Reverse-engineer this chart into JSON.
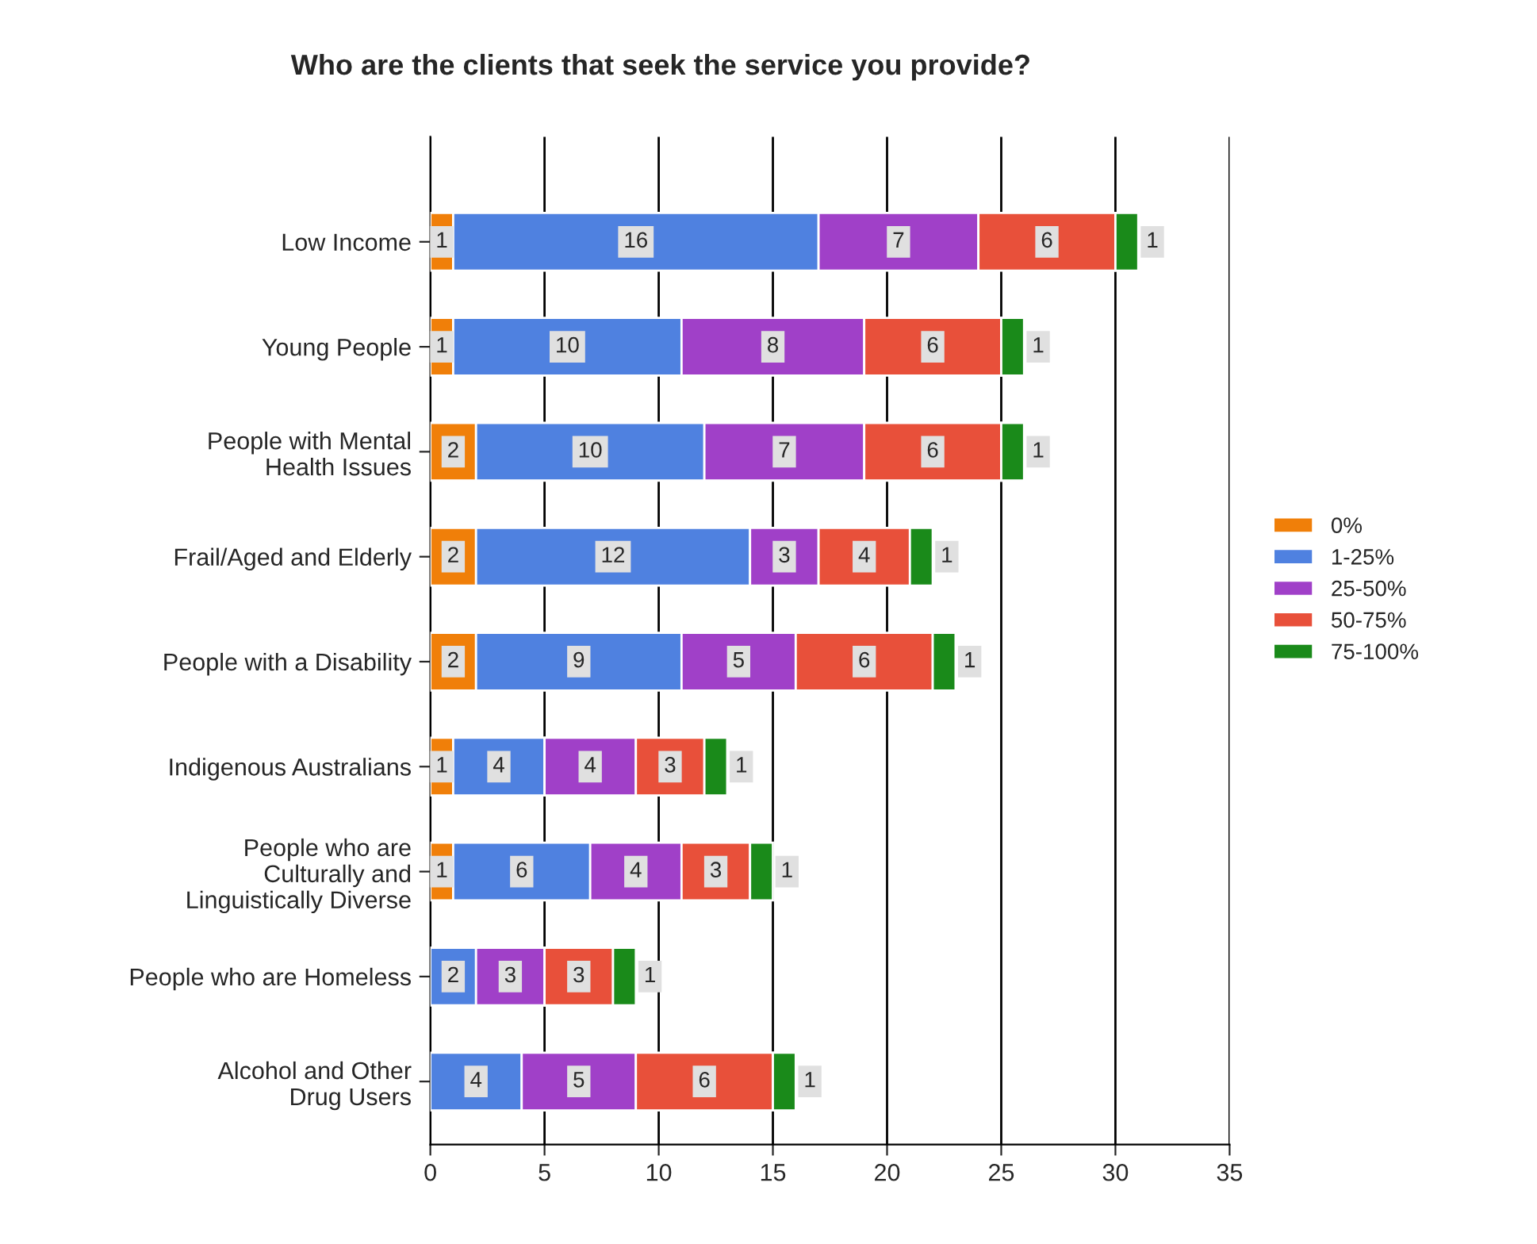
{
  "chart_data": {
    "type": "bar",
    "orientation": "horizontal",
    "stacked": true,
    "title": "Who are the clients that seek the service you provide?",
    "categories": [
      "Low Income",
      "Young People",
      "People with Mental\nHealth Issues",
      "Frail/Aged and Elderly",
      "People with a Disability",
      "Indigenous Australians",
      "People who are\nCulturally and\nLinguistically Diverse",
      "People who are Homeless",
      "Alcohol and Other\nDrug Users"
    ],
    "series": [
      {
        "name": "0%",
        "color": "#f07f09",
        "values": [
          1,
          1,
          2,
          2,
          2,
          1,
          1,
          null,
          null
        ]
      },
      {
        "name": "1-25%",
        "color": "#4f81e0",
        "values": [
          16,
          10,
          10,
          12,
          9,
          4,
          6,
          2,
          4
        ]
      },
      {
        "name": "25-50%",
        "color": "#a040c8",
        "values": [
          7,
          8,
          7,
          3,
          5,
          4,
          4,
          3,
          5
        ]
      },
      {
        "name": "50-75%",
        "color": "#e8503a",
        "values": [
          6,
          6,
          6,
          4,
          6,
          3,
          3,
          3,
          6
        ]
      },
      {
        "name": "75-100%",
        "color": "#1a8a1a",
        "values": [
          1,
          1,
          1,
          1,
          1,
          1,
          1,
          1,
          1
        ]
      }
    ],
    "xlim": [
      0,
      35
    ],
    "xticks": [
      0,
      5,
      10,
      15,
      20,
      25,
      30,
      35
    ],
    "grid": "x",
    "legend": "right",
    "data_labels": true
  }
}
